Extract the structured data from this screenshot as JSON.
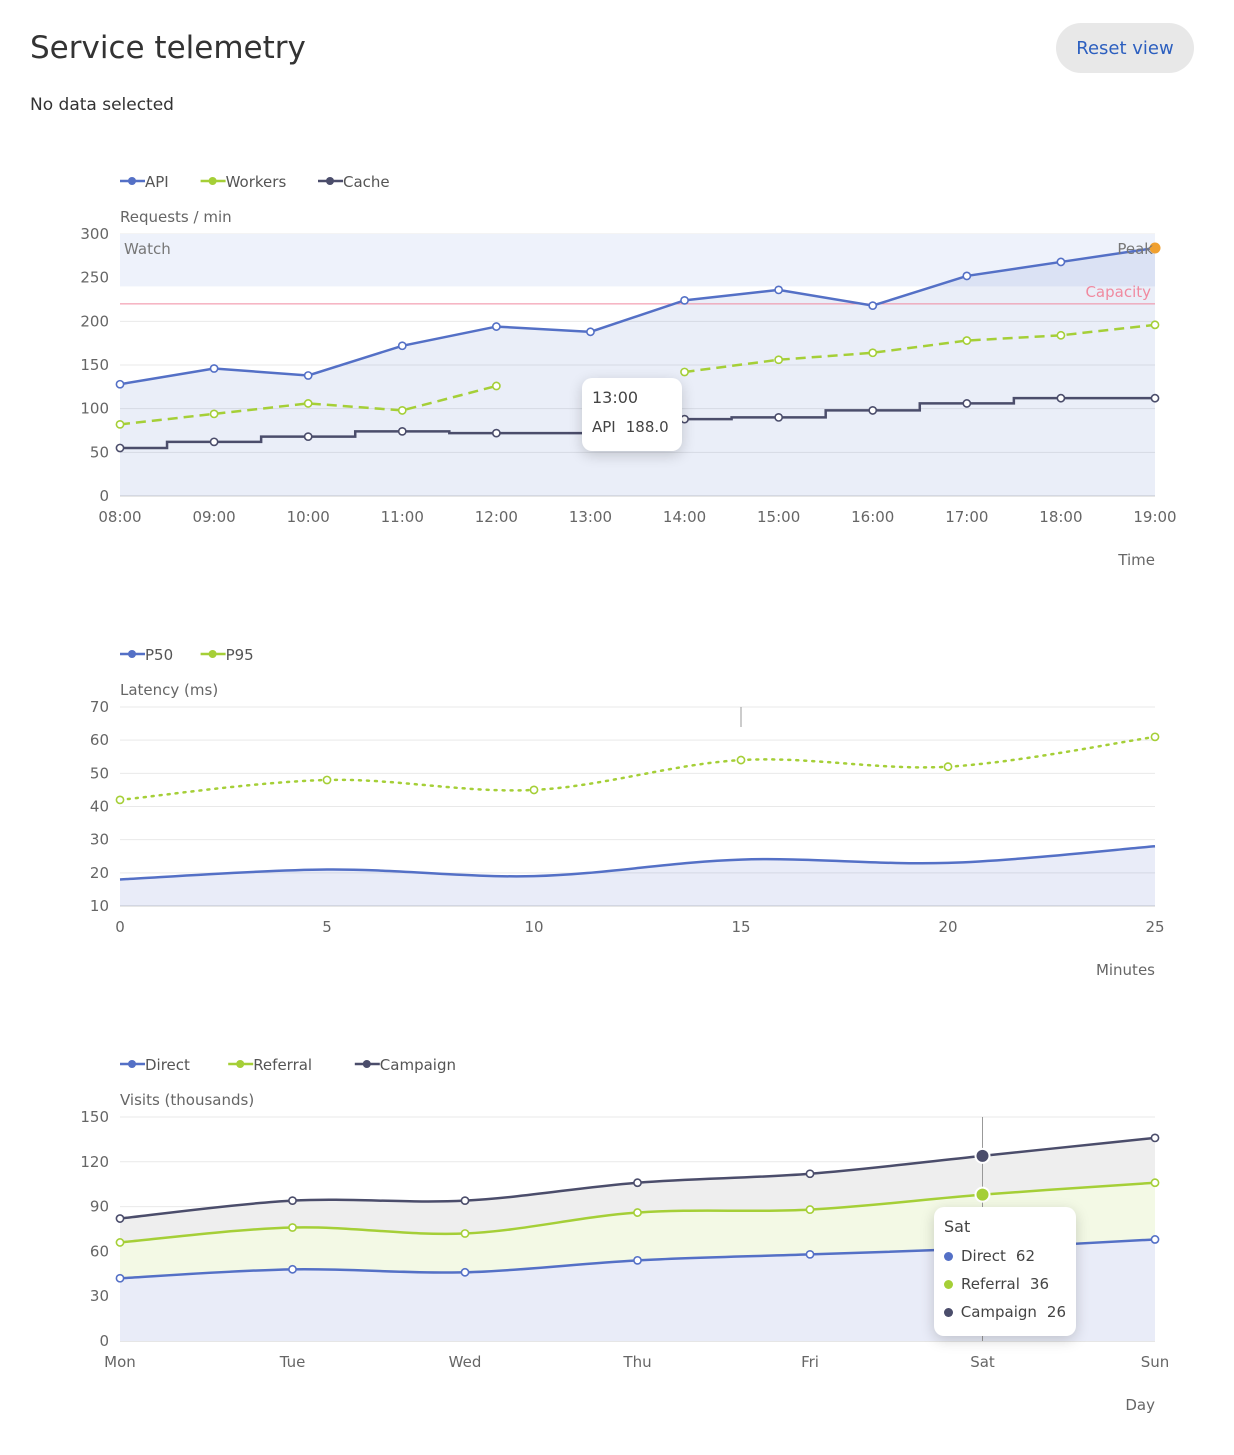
{
  "header": {
    "title": "Service telemetry",
    "reset_label": "Reset view",
    "status": "No data selected"
  },
  "colors": {
    "blue": "#5470c6",
    "green": "#a5cf37",
    "navy": "#4b4d6b",
    "orange": "#f0a030",
    "capacity": "#f08aa0"
  },
  "chart_data": [
    {
      "type": "line",
      "x": [
        "08:00",
        "09:00",
        "10:00",
        "11:00",
        "12:00",
        "13:00",
        "14:00",
        "15:00",
        "16:00",
        "17:00",
        "18:00",
        "19:00"
      ],
      "xlabel": "Time",
      "ylabel": "Requests / min",
      "ylim": [
        0,
        300
      ],
      "yticks": [
        0,
        50,
        100,
        150,
        200,
        250,
        300
      ],
      "grid": true,
      "legend_position": "top-left",
      "series": [
        {
          "name": "API",
          "values": [
            128,
            146,
            138,
            172,
            194,
            188,
            224,
            236,
            218,
            252,
            268,
            284
          ],
          "style": "solid",
          "color": "#5470c6"
        },
        {
          "name": "Workers",
          "values": [
            82,
            94,
            106,
            98,
            126,
            null,
            142,
            156,
            164,
            178,
            184,
            196
          ],
          "style": "dashed",
          "color": "#a5cf37"
        },
        {
          "name": "Cache",
          "values": [
            55,
            62,
            68,
            74,
            72,
            72,
            88,
            90,
            98,
            106,
            112,
            112
          ],
          "style": "step",
          "color": "#4b4d6b"
        }
      ],
      "annotations": {
        "band": {
          "label": "Watch",
          "from": 240,
          "to": 300
        },
        "threshold": {
          "label": "Capacity",
          "value": 220
        },
        "point": {
          "label": "Peak",
          "x": "19:00",
          "y": 284
        }
      },
      "tooltip": {
        "title": "13:00",
        "rows": [
          {
            "name": "API",
            "value": "188.0"
          }
        ]
      }
    },
    {
      "type": "line",
      "x": [
        0,
        5,
        10,
        15,
        20,
        25
      ],
      "xlabel": "Minutes",
      "ylabel": "Latency (ms)",
      "ylim": [
        10,
        70
      ],
      "yticks": [
        10,
        20,
        30,
        40,
        50,
        60,
        70
      ],
      "grid": true,
      "legend_position": "top-left",
      "series": [
        {
          "name": "P50",
          "values": [
            18,
            21,
            19,
            24,
            23,
            28
          ],
          "style": "smooth-area",
          "color": "#5470c6"
        },
        {
          "name": "P95",
          "values": [
            42,
            48,
            45,
            54,
            52,
            61
          ],
          "style": "dotted",
          "color": "#a5cf37"
        }
      ]
    },
    {
      "type": "area",
      "categories": [
        "Mon",
        "Tue",
        "Wed",
        "Thu",
        "Fri",
        "Sat",
        "Sun"
      ],
      "xlabel": "Day",
      "ylabel": "Visits (thousands)",
      "ylim": [
        0,
        150
      ],
      "yticks": [
        0,
        30,
        60,
        90,
        120,
        150
      ],
      "grid": true,
      "stacked": true,
      "legend_position": "top-left",
      "series": [
        {
          "name": "Direct",
          "values": [
            42,
            48,
            46,
            54,
            58,
            62,
            68
          ],
          "color": "#5470c6"
        },
        {
          "name": "Referral",
          "values": [
            24,
            28,
            26,
            32,
            30,
            36,
            38
          ],
          "color": "#a5cf37"
        },
        {
          "name": "Campaign",
          "values": [
            16,
            18,
            22,
            20,
            24,
            26,
            30
          ],
          "color": "#4b4d6b"
        }
      ],
      "tooltip": {
        "title": "Sat",
        "rows": [
          {
            "name": "Direct",
            "value": "62"
          },
          {
            "name": "Referral",
            "value": "36"
          },
          {
            "name": "Campaign",
            "value": "26"
          }
        ]
      }
    }
  ]
}
